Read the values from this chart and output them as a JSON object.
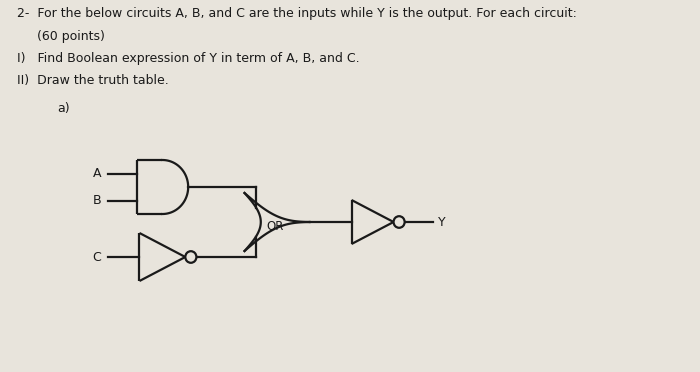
{
  "bg_color": "#e8e4dc",
  "text_color": "#1a1a1a",
  "title_line1": "2-  For the below circuits A, B, and C are the inputs while Y is the output. For each circuit:",
  "title_line2": "     (60 points)",
  "line3": "I)   Find Boolean expression of Y in term of A, B, and C.",
  "line4": "II)  Draw the truth table.",
  "label_a": "A",
  "label_b": "B",
  "label_c": "C",
  "label_or": "OR",
  "label_y": "Y",
  "label_part": "a)"
}
